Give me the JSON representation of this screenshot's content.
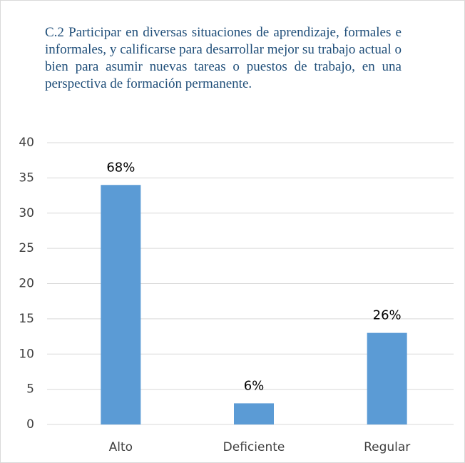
{
  "chart_data": {
    "type": "bar",
    "title": "C.2 Participar en diversas situaciones de aprendizaje, formales e informales, y calificarse para desarrollar mejor su trabajo actual o bien para asumir nuevas tareas o puestos de trabajo, en una perspectiva de formación permanente.",
    "categories": [
      "Alto",
      "Deficiente",
      "Regular"
    ],
    "values": [
      34,
      3,
      13
    ],
    "value_labels": [
      "68%",
      "6%",
      "26%"
    ],
    "color": "#5b9bd5",
    "ylim": [
      0,
      40
    ],
    "yticks": [
      0,
      5,
      10,
      15,
      20,
      25,
      30,
      35,
      40
    ],
    "grid": true
  }
}
